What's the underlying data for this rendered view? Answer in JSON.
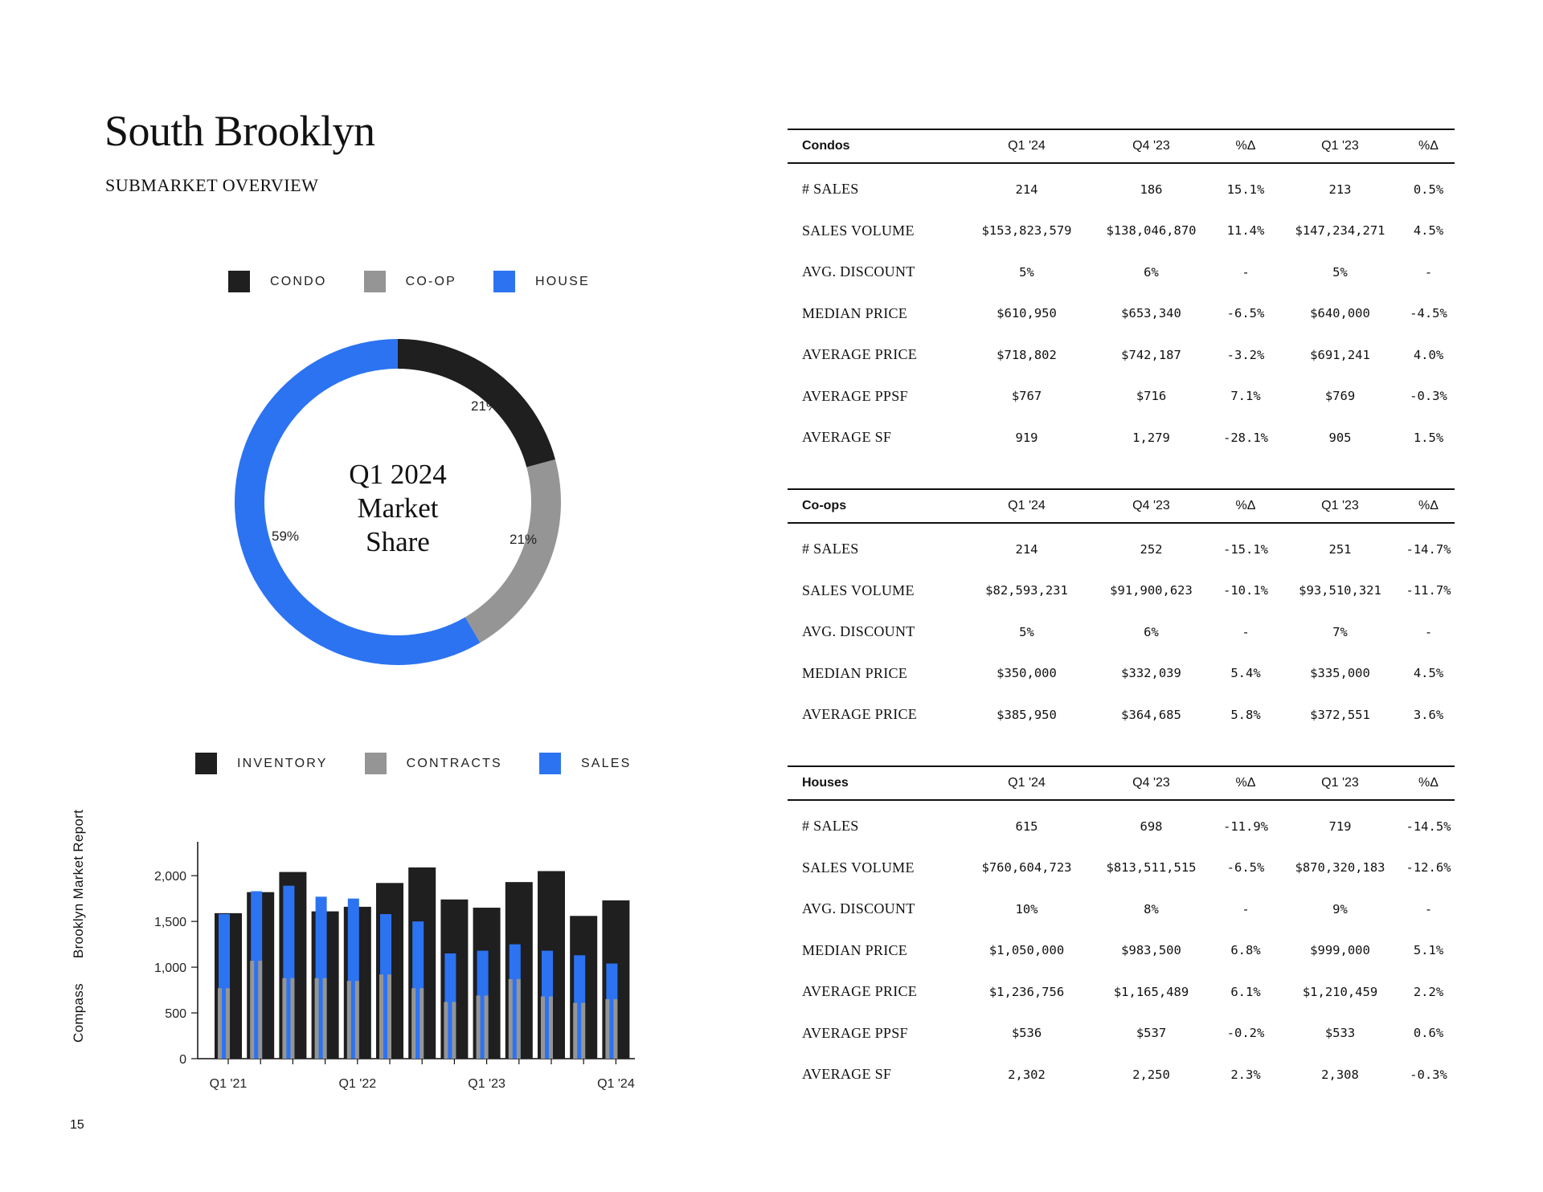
{
  "page": {
    "title": "South Brooklyn",
    "subtitle": "SUBMARKET OVERVIEW",
    "side_label": [
      "Compass",
      "Brooklyn Market Report"
    ],
    "page_number": "15"
  },
  "colors": {
    "condo": "#1f1f1f",
    "coop": "#959595",
    "house": "#2c73f2",
    "inventory": "#1f1f1f",
    "contracts": "#959595",
    "sales": "#2c73f2"
  },
  "donut_legend": [
    "CONDO",
    "CO-OP",
    "HOUSE"
  ],
  "donut_center": [
    "Q1 2024",
    "Market",
    "Share"
  ],
  "bar_legend": [
    "INVENTORY",
    "CONTRACTS",
    "SALES"
  ],
  "chart_data": [
    {
      "type": "pie",
      "style": "donut",
      "labels": [
        "CONDO",
        "CO-OP",
        "HOUSE"
      ],
      "values": [
        21,
        21,
        59
      ],
      "value_labels": [
        "21%",
        "21%",
        "59%"
      ],
      "center_text": "Q1 2024 Market Share",
      "legend_position": "top"
    },
    {
      "type": "bar",
      "x_tick_labels": [
        "Q1 '21",
        "Q1 '22",
        "Q1 '23",
        "Q1 '24"
      ],
      "categories": [
        "Q1 '21",
        "Q2 '21",
        "Q3 '21",
        "Q4 '21",
        "Q1 '22",
        "Q2 '22",
        "Q3 '22",
        "Q4 '22",
        "Q1 '23",
        "Q2 '23",
        "Q3 '23",
        "Q4 '23",
        "Q1 '24"
      ],
      "series": [
        {
          "name": "INVENTORY",
          "values": [
            1590,
            1820,
            2040,
            1610,
            1660,
            1920,
            2090,
            1740,
            1650,
            1930,
            2050,
            1560,
            1730
          ]
        },
        {
          "name": "CONTRACTS",
          "values": [
            770,
            1070,
            880,
            880,
            850,
            920,
            770,
            620,
            690,
            870,
            680,
            610,
            650
          ]
        },
        {
          "name": "SALES",
          "values": [
            1580,
            1830,
            1890,
            1770,
            1750,
            1580,
            1500,
            1150,
            1180,
            1250,
            1180,
            1130,
            1040
          ]
        }
      ],
      "y_ticks": [
        "0",
        "500",
        "1,000",
        "1,500",
        "2,000"
      ],
      "ylim": [
        0,
        2300
      ],
      "grid": false,
      "legend_position": "top"
    }
  ],
  "tables": [
    {
      "title": "Condos",
      "columns": [
        "Q1 '24",
        "Q4 '23",
        "%Δ",
        "Q1 '23",
        "%Δ"
      ],
      "rows": [
        {
          "metric": "# SALES",
          "values": [
            "214",
            "186",
            "15.1%",
            "213",
            "0.5%"
          ]
        },
        {
          "metric": "SALES VOLUME",
          "values": [
            "$153,823,579",
            "$138,046,870",
            "11.4%",
            "$147,234,271",
            "4.5%"
          ]
        },
        {
          "metric": "AVG. DISCOUNT",
          "values": [
            "5%",
            "6%",
            "-",
            "5%",
            "-"
          ]
        },
        {
          "metric": "MEDIAN PRICE",
          "values": [
            "$610,950",
            "$653,340",
            "-6.5%",
            "$640,000",
            "-4.5%"
          ]
        },
        {
          "metric": "AVERAGE PRICE",
          "values": [
            "$718,802",
            "$742,187",
            "-3.2%",
            "$691,241",
            "4.0%"
          ]
        },
        {
          "metric": "AVERAGE PPSF",
          "values": [
            "$767",
            "$716",
            "7.1%",
            "$769",
            "-0.3%"
          ]
        },
        {
          "metric": "AVERAGE SF",
          "values": [
            "919",
            "1,279",
            "-28.1%",
            "905",
            "1.5%"
          ]
        }
      ]
    },
    {
      "title": "Co-ops",
      "columns": [
        "Q1 '24",
        "Q4 '23",
        "%Δ",
        "Q1 '23",
        "%Δ"
      ],
      "rows": [
        {
          "metric": "# SALES",
          "values": [
            "214",
            "252",
            "-15.1%",
            "251",
            "-14.7%"
          ]
        },
        {
          "metric": "SALES VOLUME",
          "values": [
            "$82,593,231",
            "$91,900,623",
            "-10.1%",
            "$93,510,321",
            "-11.7%"
          ]
        },
        {
          "metric": "AVG. DISCOUNT",
          "values": [
            "5%",
            "6%",
            "-",
            "7%",
            "-"
          ]
        },
        {
          "metric": "MEDIAN PRICE",
          "values": [
            "$350,000",
            "$332,039",
            "5.4%",
            "$335,000",
            "4.5%"
          ]
        },
        {
          "metric": "AVERAGE PRICE",
          "values": [
            "$385,950",
            "$364,685",
            "5.8%",
            "$372,551",
            "3.6%"
          ]
        }
      ]
    },
    {
      "title": "Houses",
      "columns": [
        "Q1 '24",
        "Q4 '23",
        "%Δ",
        "Q1 '23",
        "%Δ"
      ],
      "rows": [
        {
          "metric": "# SALES",
          "values": [
            "615",
            "698",
            "-11.9%",
            "719",
            "-14.5%"
          ]
        },
        {
          "metric": "SALES VOLUME",
          "values": [
            "$760,604,723",
            "$813,511,515",
            "-6.5%",
            "$870,320,183",
            "-12.6%"
          ]
        },
        {
          "metric": "AVG. DISCOUNT",
          "values": [
            "10%",
            "8%",
            "-",
            "9%",
            "-"
          ]
        },
        {
          "metric": "MEDIAN PRICE",
          "values": [
            "$1,050,000",
            "$983,500",
            "6.8%",
            "$999,000",
            "5.1%"
          ]
        },
        {
          "metric": "AVERAGE PRICE",
          "values": [
            "$1,236,756",
            "$1,165,489",
            "6.1%",
            "$1,210,459",
            "2.2%"
          ]
        },
        {
          "metric": "AVERAGE PPSF",
          "values": [
            "$536",
            "$537",
            "-0.2%",
            "$533",
            "0.6%"
          ]
        },
        {
          "metric": "AVERAGE SF",
          "values": [
            "2,302",
            "2,250",
            "2.3%",
            "2,308",
            "-0.3%"
          ]
        }
      ]
    }
  ]
}
